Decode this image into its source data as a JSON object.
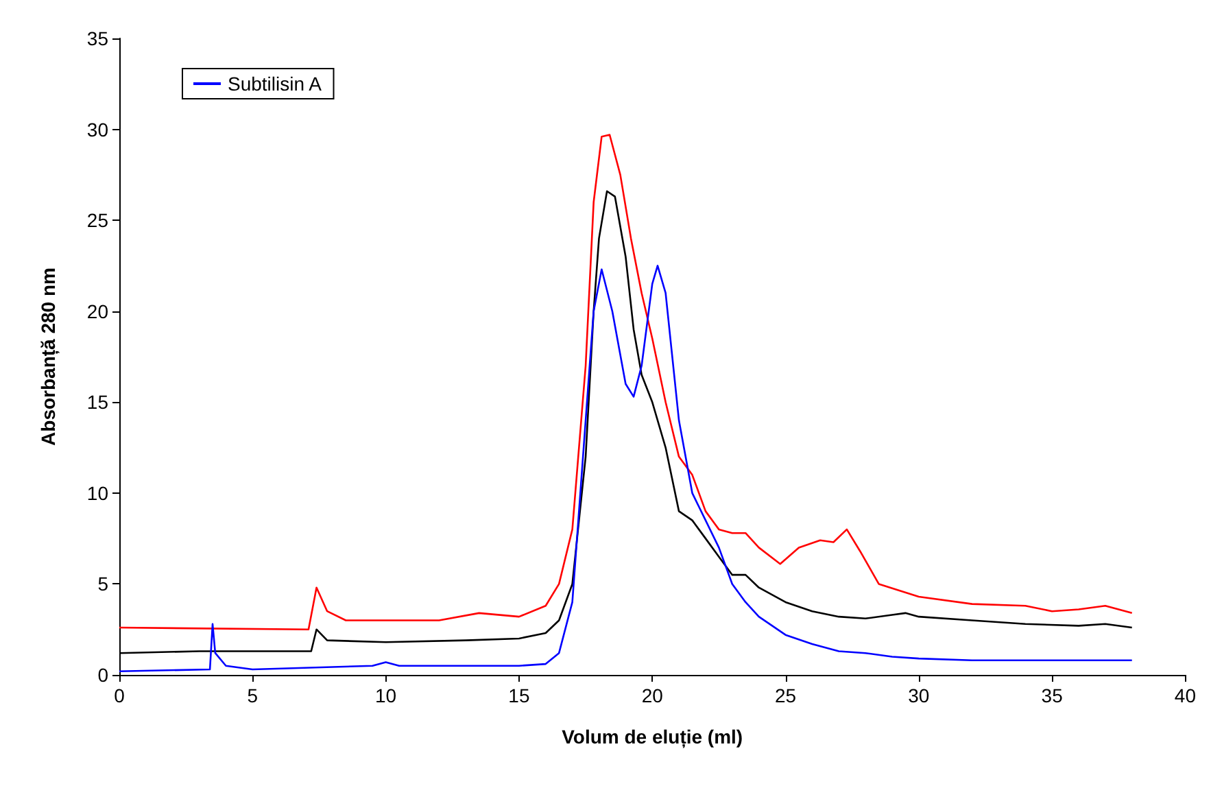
{
  "chart_data": {
    "type": "line",
    "xlabel": "Volum de eluție (ml)",
    "ylabel": "Absorbanță 280 nm",
    "xlim": [
      0,
      40
    ],
    "xticks": [
      0,
      5,
      10,
      15,
      20,
      25,
      30,
      35,
      40
    ],
    "ylim": [
      0,
      35
    ],
    "yticks": [
      0,
      5,
      10,
      15,
      20,
      25,
      30,
      35
    ],
    "grid": false,
    "legend": "top left",
    "marker": "none",
    "line_style": "solid",
    "series": [
      {
        "color": "#000000",
        "x": [
          0,
          3,
          7.2,
          7.4,
          7.8,
          10,
          13,
          15,
          16,
          16.5,
          17,
          17.5,
          17.8,
          18,
          18.3,
          18.6,
          19,
          19.3,
          19.6,
          20,
          20.5,
          21,
          21.5,
          22,
          22.5,
          23,
          23.5,
          24,
          25,
          26,
          27,
          28,
          29,
          29.5,
          30,
          32,
          34,
          36,
          37,
          38
        ],
        "values": [
          1.2,
          1.3,
          1.3,
          2.5,
          1.9,
          1.8,
          1.9,
          2.0,
          2.3,
          3,
          5,
          12,
          20,
          24,
          26.6,
          26.3,
          23,
          19,
          16.5,
          15,
          12.5,
          9,
          8.5,
          7.5,
          6.5,
          5.5,
          5.5,
          4.8,
          4,
          3.5,
          3.2,
          3.1,
          3.3,
          3.4,
          3.2,
          3.0,
          2.8,
          2.7,
          2.8,
          2.6
        ]
      },
      {
        "color": "#ff0000",
        "x": [
          0,
          7.1,
          7.4,
          7.8,
          8.5,
          12,
          13.5,
          15,
          16,
          16.5,
          17,
          17.5,
          17.8,
          18.1,
          18.4,
          18.8,
          19.2,
          19.6,
          20,
          20.5,
          21,
          21.5,
          22,
          22.5,
          23,
          23.5,
          24,
          24.8,
          25.5,
          26.3,
          26.8,
          27.3,
          27.8,
          28.5,
          30,
          32,
          34,
          35,
          36,
          37,
          38
        ],
        "values": [
          2.6,
          2.5,
          4.8,
          3.5,
          3.0,
          3.0,
          3.4,
          3.2,
          3.8,
          5,
          8,
          17,
          26,
          29.6,
          29.7,
          27.5,
          24,
          21,
          18.5,
          15,
          12,
          11,
          9,
          8,
          7.8,
          7.8,
          7,
          6.1,
          7,
          7.4,
          7.3,
          8.0,
          6.8,
          5,
          4.3,
          3.9,
          3.8,
          3.5,
          3.6,
          3.8,
          3.4
        ]
      },
      {
        "name": "Subtilisin A",
        "color": "#0000ff",
        "x": [
          0,
          3.4,
          3.5,
          3.6,
          4,
          5,
          9.5,
          10,
          10.5,
          15,
          16,
          16.5,
          17,
          17.5,
          17.8,
          18.1,
          18.5,
          19,
          19.3,
          19.6,
          20,
          20.2,
          20.5,
          21,
          21.5,
          22,
          22.5,
          23,
          23.5,
          24,
          25,
          26,
          27,
          28,
          29,
          30,
          32,
          35,
          38
        ],
        "values": [
          0.2,
          0.3,
          2.8,
          1.2,
          0.5,
          0.3,
          0.5,
          0.7,
          0.5,
          0.5,
          0.6,
          1.2,
          4,
          14,
          20,
          22.3,
          20,
          16,
          15.3,
          17,
          21.5,
          22.5,
          21,
          14,
          10,
          8.5,
          7,
          5,
          4,
          3.2,
          2.2,
          1.7,
          1.3,
          1.2,
          1.0,
          0.9,
          0.8,
          0.8,
          0.8
        ]
      }
    ]
  }
}
